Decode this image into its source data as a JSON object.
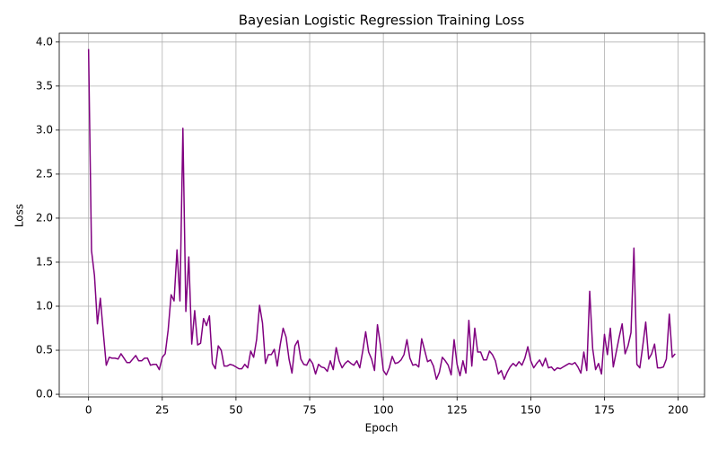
{
  "chart_data": {
    "type": "line",
    "title": "Bayesian Logistic Regression Training Loss",
    "xlabel": "Epoch",
    "ylabel": "Loss",
    "color": "#800080",
    "grid": true,
    "xlim": [
      -9.95,
      208.95
    ],
    "ylim": [
      -0.03,
      4.1
    ],
    "xticks": [
      0,
      25,
      50,
      75,
      100,
      125,
      150,
      175,
      200
    ],
    "yticks": [
      {
        "value": 0,
        "label": "0.0"
      },
      0.5,
      {
        "value": 1,
        "label": "1.0"
      },
      1.5,
      {
        "value": 2,
        "label": "2.0"
      },
      2.5,
      {
        "value": 3,
        "label": "3.0"
      },
      3.5,
      {
        "value": 4,
        "label": "4.0"
      }
    ],
    "x": [
      0,
      1,
      2,
      3,
      4,
      5,
      6,
      7,
      8,
      9,
      10,
      11,
      12,
      13,
      14,
      15,
      16,
      17,
      18,
      19,
      20,
      21,
      22,
      23,
      24,
      25,
      26,
      27,
      28,
      29,
      30,
      31,
      32,
      33,
      34,
      35,
      36,
      37,
      38,
      39,
      40,
      41,
      42,
      43,
      44,
      45,
      46,
      47,
      48,
      49,
      50,
      51,
      52,
      53,
      54,
      55,
      56,
      57,
      58,
      59,
      60,
      61,
      62,
      63,
      64,
      65,
      66,
      67,
      68,
      69,
      70,
      71,
      72,
      73,
      74,
      75,
      76,
      77,
      78,
      79,
      80,
      81,
      82,
      83,
      84,
      85,
      86,
      87,
      88,
      89,
      90,
      91,
      92,
      93,
      94,
      95,
      96,
      97,
      98,
      99,
      100,
      101,
      102,
      103,
      104,
      105,
      106,
      107,
      108,
      109,
      110,
      111,
      112,
      113,
      114,
      115,
      116,
      117,
      118,
      119,
      120,
      121,
      122,
      123,
      124,
      125,
      126,
      127,
      128,
      129,
      130,
      131,
      132,
      133,
      134,
      135,
      136,
      137,
      138,
      139,
      140,
      141,
      142,
      143,
      144,
      145,
      146,
      147,
      148,
      149,
      150,
      151,
      152,
      153,
      154,
      155,
      156,
      157,
      158,
      159,
      160,
      161,
      162,
      163,
      164,
      165,
      166,
      167,
      168,
      169,
      170,
      171,
      172,
      173,
      174,
      175,
      176,
      177,
      178,
      179,
      180,
      181,
      182,
      183,
      184,
      185,
      186,
      187,
      188,
      189,
      190,
      191,
      192,
      193,
      194,
      195,
      196,
      197,
      198,
      199
    ],
    "values": [
      3.92,
      1.63,
      1.35,
      0.8,
      1.09,
      0.7,
      0.33,
      0.42,
      0.41,
      0.41,
      0.4,
      0.46,
      0.41,
      0.36,
      0.36,
      0.4,
      0.44,
      0.38,
      0.38,
      0.41,
      0.41,
      0.33,
      0.34,
      0.34,
      0.28,
      0.42,
      0.46,
      0.73,
      1.13,
      1.06,
      1.64,
      1.06,
      3.02,
      0.94,
      1.56,
      0.57,
      0.95,
      0.56,
      0.58,
      0.86,
      0.78,
      0.89,
      0.35,
      0.29,
      0.55,
      0.5,
      0.32,
      0.32,
      0.34,
      0.33,
      0.31,
      0.29,
      0.29,
      0.34,
      0.3,
      0.49,
      0.42,
      0.62,
      1.01,
      0.81,
      0.35,
      0.45,
      0.45,
      0.51,
      0.32,
      0.56,
      0.75,
      0.65,
      0.4,
      0.24,
      0.55,
      0.61,
      0.4,
      0.34,
      0.33,
      0.4,
      0.35,
      0.23,
      0.34,
      0.31,
      0.3,
      0.26,
      0.38,
      0.28,
      0.53,
      0.38,
      0.3,
      0.35,
      0.38,
      0.35,
      0.33,
      0.38,
      0.3,
      0.49,
      0.71,
      0.48,
      0.4,
      0.27,
      0.79,
      0.56,
      0.27,
      0.22,
      0.3,
      0.43,
      0.35,
      0.36,
      0.39,
      0.45,
      0.62,
      0.41,
      0.33,
      0.34,
      0.31,
      0.63,
      0.5,
      0.37,
      0.39,
      0.32,
      0.17,
      0.25,
      0.42,
      0.38,
      0.33,
      0.22,
      0.62,
      0.34,
      0.21,
      0.38,
      0.24,
      0.84,
      0.32,
      0.75,
      0.48,
      0.48,
      0.39,
      0.39,
      0.49,
      0.45,
      0.38,
      0.23,
      0.27,
      0.17,
      0.25,
      0.31,
      0.35,
      0.32,
      0.37,
      0.33,
      0.41,
      0.54,
      0.38,
      0.3,
      0.35,
      0.39,
      0.32,
      0.41,
      0.3,
      0.31,
      0.27,
      0.3,
      0.29,
      0.31,
      0.33,
      0.35,
      0.34,
      0.36,
      0.31,
      0.24,
      0.48,
      0.27,
      1.17,
      0.52,
      0.28,
      0.35,
      0.23,
      0.68,
      0.45,
      0.75,
      0.31,
      0.48,
      0.65,
      0.8,
      0.46,
      0.55,
      0.7,
      1.66,
      0.34,
      0.3,
      0.55,
      0.82,
      0.4,
      0.46,
      0.57,
      0.3,
      0.3,
      0.31,
      0.4,
      0.91,
      0.42,
      0.46
    ]
  }
}
